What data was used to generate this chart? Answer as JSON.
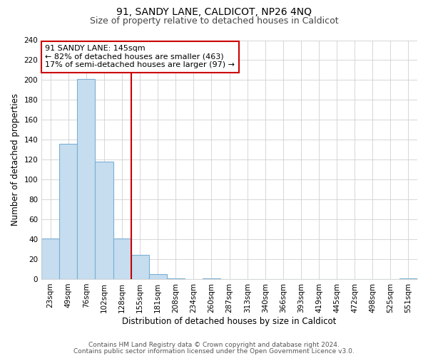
{
  "title": "91, SANDY LANE, CALDICOT, NP26 4NQ",
  "subtitle": "Size of property relative to detached houses in Caldicot",
  "xlabel": "Distribution of detached houses by size in Caldicot",
  "ylabel": "Number of detached properties",
  "bar_labels": [
    "23sqm",
    "49sqm",
    "76sqm",
    "102sqm",
    "128sqm",
    "155sqm",
    "181sqm",
    "208sqm",
    "234sqm",
    "260sqm",
    "287sqm",
    "313sqm",
    "340sqm",
    "366sqm",
    "393sqm",
    "419sqm",
    "445sqm",
    "472sqm",
    "498sqm",
    "525sqm",
    "551sqm"
  ],
  "bar_values": [
    41,
    136,
    201,
    118,
    41,
    24,
    5,
    1,
    0,
    1,
    0,
    0,
    0,
    0,
    0,
    0,
    0,
    0,
    0,
    0,
    1
  ],
  "bar_color": "#c5ddef",
  "bar_edge_color": "#7bafd4",
  "vline_x": 4.5,
  "vline_color": "#cc0000",
  "annotation_title": "91 SANDY LANE: 145sqm",
  "annotation_line1": "← 82% of detached houses are smaller (463)",
  "annotation_line2": "17% of semi-detached houses are larger (97) →",
  "annotation_box_color": "#ffffff",
  "annotation_box_edge": "#cc0000",
  "ylim": [
    0,
    240
  ],
  "yticks": [
    0,
    20,
    40,
    60,
    80,
    100,
    120,
    140,
    160,
    180,
    200,
    220,
    240
  ],
  "footer1": "Contains HM Land Registry data © Crown copyright and database right 2024.",
  "footer2": "Contains public sector information licensed under the Open Government Licence v3.0.",
  "bg_color": "#ffffff",
  "grid_color": "#d0d0d0",
  "title_fontsize": 10,
  "subtitle_fontsize": 9,
  "axis_label_fontsize": 8.5,
  "tick_fontsize": 7.5,
  "ann_fontsize": 8,
  "footer_fontsize": 6.5
}
